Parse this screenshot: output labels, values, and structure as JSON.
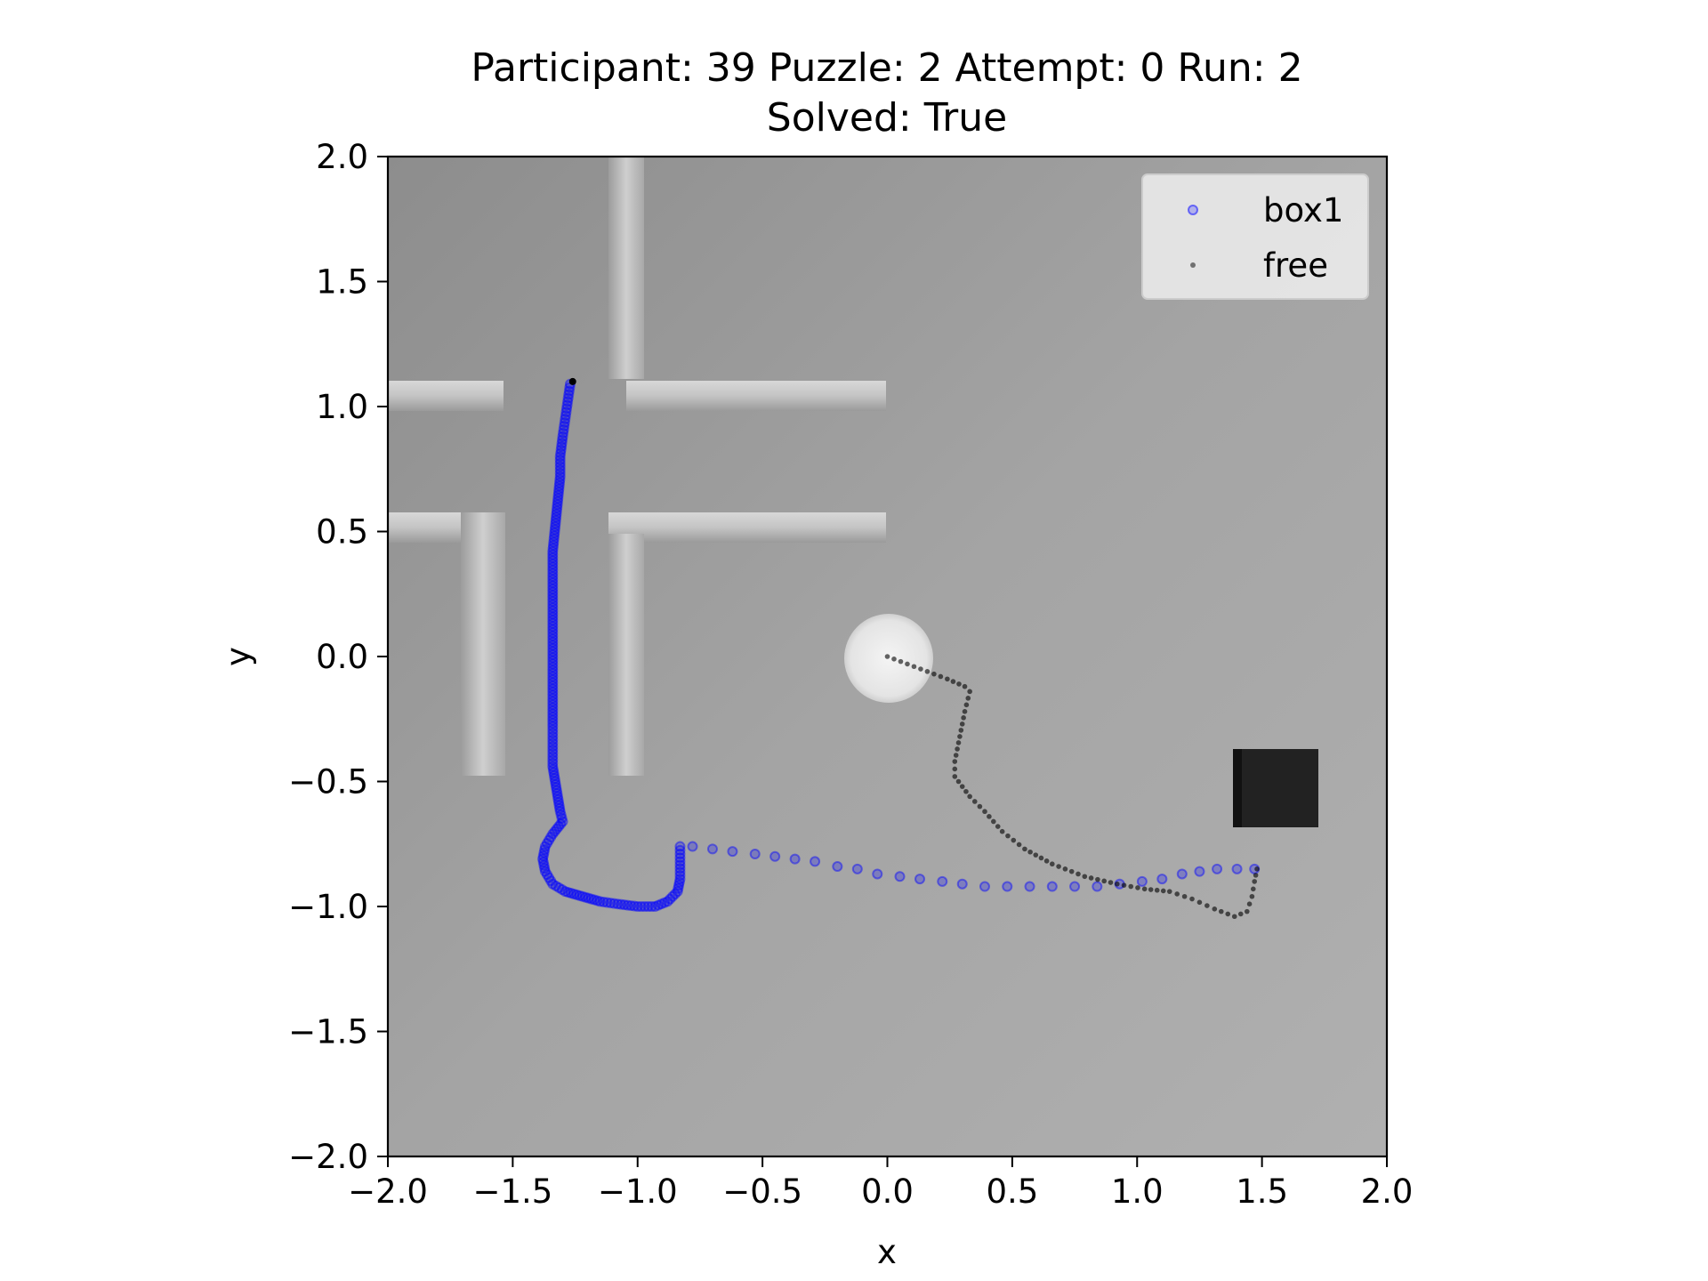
{
  "chart_data": {
    "type": "scatter",
    "title": [
      "Participant: 39 Puzzle: 2 Attempt: 0 Run: 2",
      "Solved: True"
    ],
    "xlabel": "x",
    "ylabel": "y",
    "xlim": [
      -2.0,
      2.0
    ],
    "ylim": [
      -2.0,
      2.0
    ],
    "xticks": [
      "−2.0",
      "−1.5",
      "−1.0",
      "−0.5",
      "0.0",
      "0.5",
      "1.0",
      "1.5",
      "2.0"
    ],
    "yticks": [
      "2.0",
      "1.5",
      "1.0",
      "0.5",
      "0.0",
      "−0.5",
      "−1.0",
      "−1.5",
      "−2.0"
    ],
    "legend_position": "upper-right",
    "background": "grayscale rendered scene with walls, white disc, black cube",
    "colors": {
      "box1": "#0000ff",
      "free": "#000000",
      "background": "#a6a6a6"
    },
    "series": [
      {
        "name": "box1",
        "marker": "hollow-circle",
        "points": [
          [
            -1.27,
            1.09
          ],
          [
            -1.28,
            1.02
          ],
          [
            -1.29,
            0.95
          ],
          [
            -1.3,
            0.88
          ],
          [
            -1.31,
            0.8
          ],
          [
            -1.31,
            0.72
          ],
          [
            -1.32,
            0.62
          ],
          [
            -1.33,
            0.52
          ],
          [
            -1.34,
            0.42
          ],
          [
            -1.34,
            0.32
          ],
          [
            -1.34,
            0.22
          ],
          [
            -1.34,
            0.12
          ],
          [
            -1.34,
            0.02
          ],
          [
            -1.34,
            -0.08
          ],
          [
            -1.34,
            -0.18
          ],
          [
            -1.34,
            -0.28
          ],
          [
            -1.34,
            -0.36
          ],
          [
            -1.34,
            -0.44
          ],
          [
            -1.33,
            -0.5
          ],
          [
            -1.32,
            -0.56
          ],
          [
            -1.31,
            -0.62
          ],
          [
            -1.3,
            -0.66
          ],
          [
            -1.34,
            -0.71
          ],
          [
            -1.37,
            -0.76
          ],
          [
            -1.38,
            -0.81
          ],
          [
            -1.37,
            -0.86
          ],
          [
            -1.34,
            -0.91
          ],
          [
            -1.29,
            -0.94
          ],
          [
            -1.22,
            -0.96
          ],
          [
            -1.15,
            -0.98
          ],
          [
            -1.08,
            -0.99
          ],
          [
            -1.0,
            -1.0
          ],
          [
            -0.93,
            -1.0
          ],
          [
            -0.88,
            -0.98
          ],
          [
            -0.84,
            -0.94
          ],
          [
            -0.83,
            -0.89
          ],
          [
            -0.83,
            -0.82
          ],
          [
            -0.83,
            -0.76
          ],
          [
            -0.78,
            -0.76
          ],
          [
            -0.7,
            -0.77
          ],
          [
            -0.62,
            -0.78
          ],
          [
            -0.53,
            -0.79
          ],
          [
            -0.45,
            -0.8
          ],
          [
            -0.37,
            -0.81
          ],
          [
            -0.29,
            -0.82
          ],
          [
            -0.2,
            -0.84
          ],
          [
            -0.12,
            -0.85
          ],
          [
            -0.04,
            -0.87
          ],
          [
            0.05,
            -0.88
          ],
          [
            0.13,
            -0.89
          ],
          [
            0.22,
            -0.9
          ],
          [
            0.3,
            -0.91
          ],
          [
            0.39,
            -0.92
          ],
          [
            0.48,
            -0.92
          ],
          [
            0.57,
            -0.92
          ],
          [
            0.66,
            -0.92
          ],
          [
            0.75,
            -0.92
          ],
          [
            0.84,
            -0.92
          ],
          [
            0.93,
            -0.91
          ],
          [
            1.02,
            -0.9
          ],
          [
            1.1,
            -0.89
          ],
          [
            1.18,
            -0.87
          ],
          [
            1.25,
            -0.86
          ],
          [
            1.32,
            -0.85
          ],
          [
            1.4,
            -0.85
          ],
          [
            1.47,
            -0.85
          ]
        ]
      },
      {
        "name": "free",
        "marker": "small-dot",
        "points": [
          [
            0.0,
            0.0
          ],
          [
            0.08,
            -0.03
          ],
          [
            0.16,
            -0.06
          ],
          [
            0.24,
            -0.09
          ],
          [
            0.31,
            -0.12
          ],
          [
            0.33,
            -0.14
          ],
          [
            0.31,
            -0.22
          ],
          [
            0.29,
            -0.32
          ],
          [
            0.27,
            -0.42
          ],
          [
            0.27,
            -0.48
          ],
          [
            0.33,
            -0.56
          ],
          [
            0.39,
            -0.62
          ],
          [
            0.46,
            -0.7
          ],
          [
            0.55,
            -0.77
          ],
          [
            0.66,
            -0.83
          ],
          [
            0.79,
            -0.88
          ],
          [
            0.92,
            -0.91
          ],
          [
            1.03,
            -0.93
          ],
          [
            1.13,
            -0.94
          ],
          [
            1.22,
            -0.97
          ],
          [
            1.31,
            -1.01
          ],
          [
            1.39,
            -1.04
          ],
          [
            1.44,
            -1.02
          ],
          [
            1.46,
            -0.96
          ],
          [
            1.47,
            -0.9
          ],
          [
            1.48,
            -0.85
          ]
        ]
      }
    ]
  }
}
